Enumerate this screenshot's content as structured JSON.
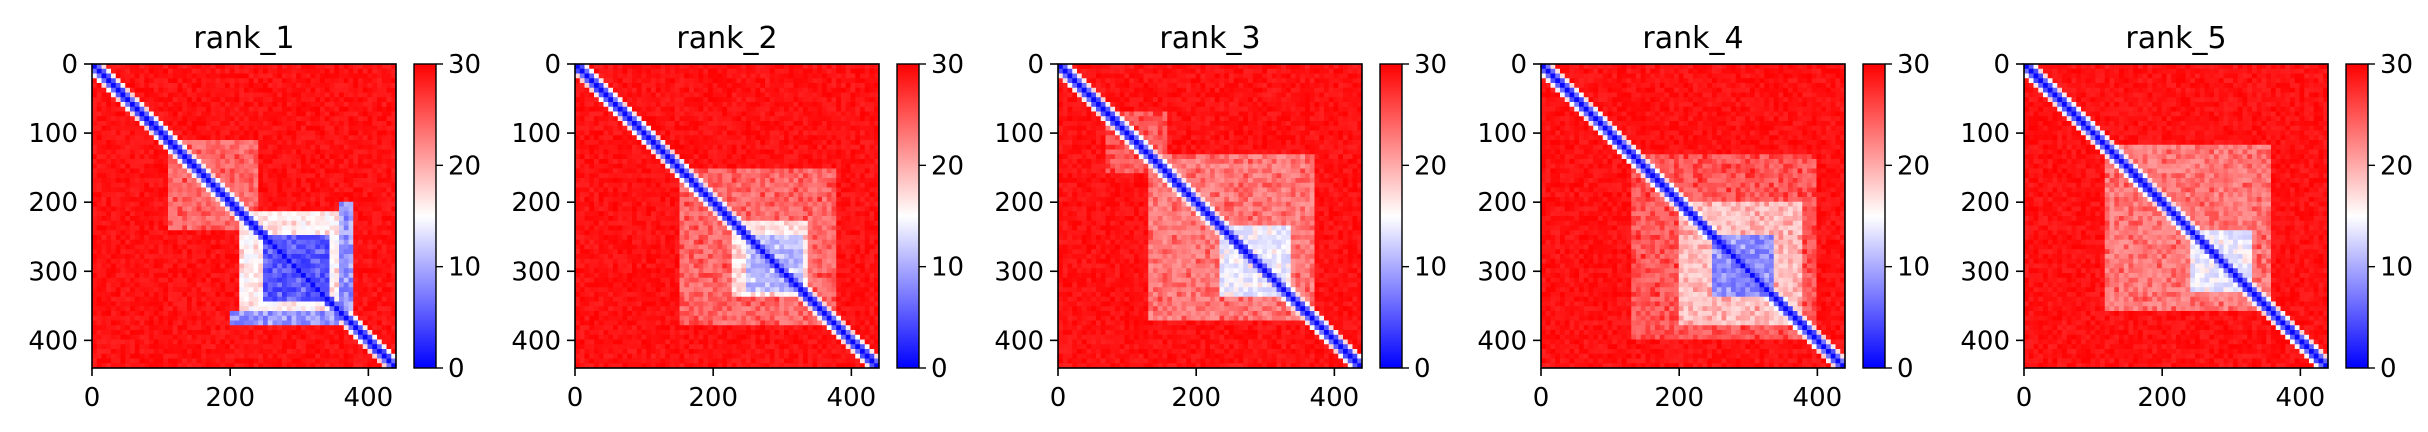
{
  "chart_data": [
    {
      "type": "heatmap",
      "title": "rank_1",
      "matrix_size": 440,
      "xlim": [
        0,
        440
      ],
      "ylim": [
        440,
        0
      ],
      "xticks": [
        0,
        200,
        400
      ],
      "yticks": [
        0,
        100,
        200,
        300,
        400
      ],
      "colorbar": {
        "min": 0,
        "max": 30,
        "ticks": [
          0,
          10,
          20,
          30
        ],
        "colormap": "bwr"
      },
      "low_regions": [
        {
          "x": [
            245,
            345
          ],
          "y": [
            245,
            345
          ],
          "value": 6
        },
        {
          "x": [
            210,
            370
          ],
          "y": [
            210,
            370
          ],
          "value": 17
        },
        {
          "x": [
            200,
            360
          ],
          "y": [
            360,
            380
          ],
          "value": 9
        },
        {
          "x": [
            110,
            240
          ],
          "y": [
            110,
            240
          ],
          "value": 25
        }
      ]
    },
    {
      "type": "heatmap",
      "title": "rank_2",
      "matrix_size": 440,
      "xlim": [
        0,
        440
      ],
      "ylim": [
        440,
        0
      ],
      "xticks": [
        0,
        200,
        400
      ],
      "yticks": [
        0,
        100,
        200,
        300,
        400
      ],
      "colorbar": {
        "min": 0,
        "max": 30,
        "ticks": [
          0,
          10,
          20,
          30
        ],
        "colormap": "bwr"
      },
      "low_regions": [
        {
          "x": [
            230,
            340
          ],
          "y": [
            230,
            340
          ],
          "value": 18
        },
        {
          "x": [
            245,
            330
          ],
          "y": [
            245,
            330
          ],
          "value": 12
        },
        {
          "x": [
            150,
            380
          ],
          "y": [
            150,
            380
          ],
          "value": 25
        }
      ]
    },
    {
      "type": "heatmap",
      "title": "rank_3",
      "matrix_size": 440,
      "xlim": [
        0,
        440
      ],
      "ylim": [
        440,
        0
      ],
      "xticks": [
        0,
        200,
        400
      ],
      "yticks": [
        0,
        100,
        200,
        300,
        400
      ],
      "colorbar": {
        "min": 0,
        "max": 30,
        "ticks": [
          0,
          10,
          20,
          30
        ],
        "colormap": "bwr"
      },
      "low_regions": [
        {
          "x": [
            235,
            340
          ],
          "y": [
            235,
            340
          ],
          "value": 15
        },
        {
          "x": [
            130,
            370
          ],
          "y": [
            130,
            370
          ],
          "value": 24
        },
        {
          "x": [
            70,
            160
          ],
          "y": [
            70,
            160
          ],
          "value": 26
        }
      ]
    },
    {
      "type": "heatmap",
      "title": "rank_4",
      "matrix_size": 440,
      "xlim": [
        0,
        440
      ],
      "ylim": [
        440,
        0
      ],
      "xticks": [
        0,
        200,
        400
      ],
      "yticks": [
        0,
        100,
        200,
        300,
        400
      ],
      "colorbar": {
        "min": 0,
        "max": 30,
        "ticks": [
          0,
          10,
          20,
          30
        ],
        "colormap": "bwr"
      },
      "low_regions": [
        {
          "x": [
            250,
            340
          ],
          "y": [
            250,
            340
          ],
          "value": 9
        },
        {
          "x": [
            200,
            380
          ],
          "y": [
            200,
            380
          ],
          "value": 20
        },
        {
          "x": [
            130,
            400
          ],
          "y": [
            130,
            400
          ],
          "value": 26
        }
      ]
    },
    {
      "type": "heatmap",
      "title": "rank_5",
      "matrix_size": 440,
      "xlim": [
        0,
        440
      ],
      "ylim": [
        440,
        0
      ],
      "xticks": [
        0,
        200,
        400
      ],
      "yticks": [
        0,
        100,
        200,
        300,
        400
      ],
      "colorbar": {
        "min": 0,
        "max": 30,
        "ticks": [
          0,
          10,
          20,
          30
        ],
        "colormap": "bwr"
      },
      "low_regions": [
        {
          "x": [
            240,
            330
          ],
          "y": [
            240,
            330
          ],
          "value": 15
        },
        {
          "x": [
            120,
            360
          ],
          "y": [
            120,
            360
          ],
          "value": 24
        }
      ]
    }
  ]
}
